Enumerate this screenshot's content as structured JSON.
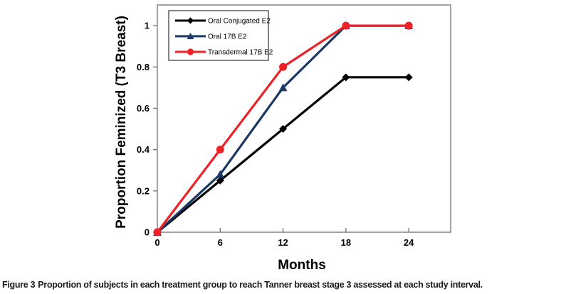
{
  "figure": {
    "caption_label": "Figure 3",
    "caption_text": "Proportion of subjects in each treatment group to reach Tanner breast stage 3 assessed at each study interval."
  },
  "chart_data": {
    "type": "line",
    "title": "",
    "xlabel": "Months",
    "ylabel": "Proportion Feminized (T3 Breast)",
    "x": [
      0,
      6,
      12,
      18,
      24
    ],
    "x_tick_labels": [
      "0",
      "6",
      "12",
      "18",
      "24"
    ],
    "y_tick_values": [
      0,
      0.2,
      0.4,
      0.6,
      0.8,
      1
    ],
    "y_tick_labels": [
      "0",
      "0.2",
      "0.4",
      "0.6",
      "0.8",
      "1"
    ],
    "xlim": [
      0,
      28
    ],
    "ylim": [
      0,
      1.1
    ],
    "grid": false,
    "legend_position": "top-left-inside",
    "series": [
      {
        "name": "Oral Conjugated E2",
        "marker": "diamond",
        "color": "#000000",
        "values": [
          0,
          0.25,
          0.5,
          0.75,
          0.75
        ]
      },
      {
        "name": "Oral 17B E2",
        "marker": "triangle",
        "color": "#1B3764",
        "values": [
          0,
          0.28,
          0.7,
          1.0,
          1.0
        ]
      },
      {
        "name": "Transdermal 17B E2",
        "marker": "circle",
        "color": "#EC2227",
        "values": [
          0,
          0.4,
          0.8,
          1.0,
          1.0
        ]
      }
    ],
    "axis_color": "#7a7a7a",
    "legend_border_color": "#404040",
    "text_color": "#000000",
    "background_color": "#ffffff"
  }
}
